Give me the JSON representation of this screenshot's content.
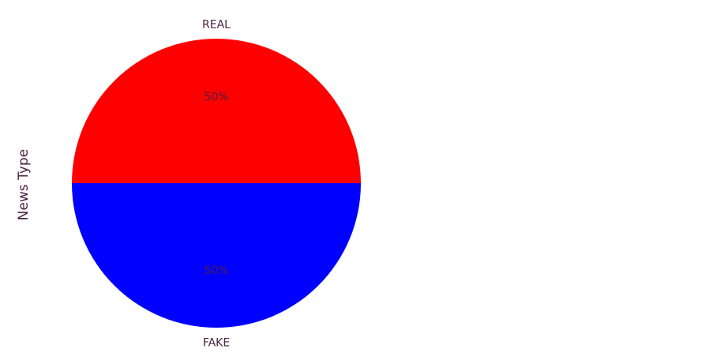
{
  "chart_data": {
    "type": "pie",
    "title": "",
    "ylabel": "News Type",
    "categories": [
      "REAL",
      "FAKE"
    ],
    "values": [
      50,
      50
    ],
    "pct_labels": [
      "50%",
      "50%"
    ],
    "colors": [
      "#ff0000",
      "#0000ff"
    ],
    "text_color": "#4a2040",
    "legend": "none"
  }
}
